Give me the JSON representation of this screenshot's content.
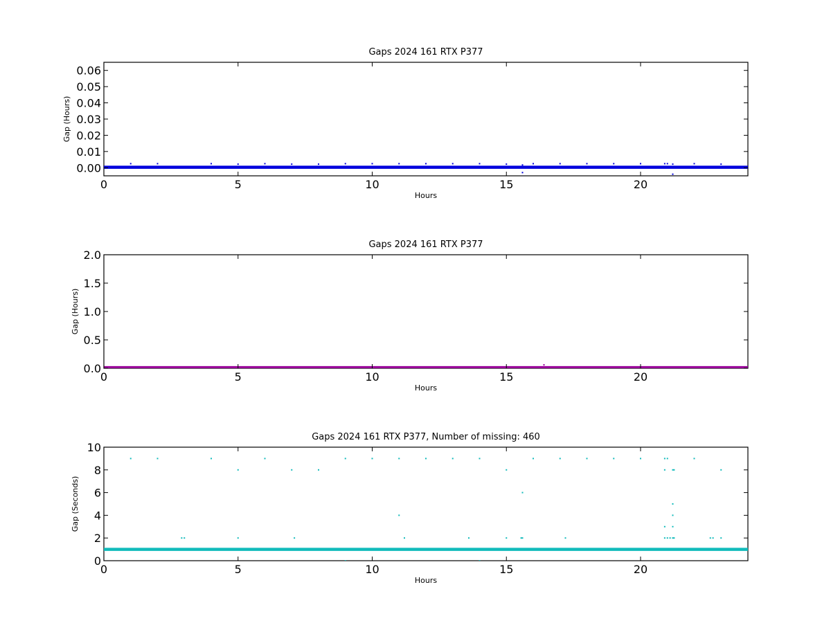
{
  "chart_data": [
    {
      "type": "scatter",
      "title": "Gaps 2024 161 RTX  P377",
      "xlabel": "Hours",
      "ylabel": "Gap (Hours)",
      "xlim": [
        0,
        24
      ],
      "ylim": [
        -0.005,
        0.065
      ],
      "xticks": [
        0,
        5,
        10,
        15,
        20
      ],
      "yticks": [
        0.0,
        0.01,
        0.02,
        0.03,
        0.04,
        0.05,
        0.06
      ],
      "ytick_labels": [
        "0.00",
        "0.01",
        "0.02",
        "0.03",
        "0.04",
        "0.05",
        "0.06"
      ],
      "xtick_labels": [
        "0",
        "5",
        "10",
        "15",
        "20"
      ],
      "grid": false,
      "color": "#0000dd",
      "baseline": {
        "x_start": 0,
        "x_end": 24,
        "y": 0.000278
      },
      "points": [
        {
          "x": 1.0,
          "y": 0.0025
        },
        {
          "x": 2.0,
          "y": 0.0025
        },
        {
          "x": 4.0,
          "y": 0.0025
        },
        {
          "x": 5.0,
          "y": 0.0022
        },
        {
          "x": 6.0,
          "y": 0.0025
        },
        {
          "x": 7.0,
          "y": 0.0022
        },
        {
          "x": 8.0,
          "y": 0.0022
        },
        {
          "x": 9.0,
          "y": 0.0025
        },
        {
          "x": 10.0,
          "y": 0.0025
        },
        {
          "x": 11.0,
          "y": 0.0025
        },
        {
          "x": 12.0,
          "y": 0.0025
        },
        {
          "x": 13.0,
          "y": 0.0025
        },
        {
          "x": 14.0,
          "y": 0.0025
        },
        {
          "x": 15.0,
          "y": 0.0022
        },
        {
          "x": 15.6,
          "y": 0.0017
        },
        {
          "x": 15.6,
          "y": -0.003
        },
        {
          "x": 16.0,
          "y": 0.0025
        },
        {
          "x": 17.0,
          "y": 0.0025
        },
        {
          "x": 18.0,
          "y": 0.0025
        },
        {
          "x": 19.0,
          "y": 0.0025
        },
        {
          "x": 20.0,
          "y": 0.0025
        },
        {
          "x": 20.9,
          "y": 0.0025
        },
        {
          "x": 21.0,
          "y": 0.0025
        },
        {
          "x": 21.2,
          "y": 0.0022
        },
        {
          "x": 21.2,
          "y": -0.004
        },
        {
          "x": 22.0,
          "y": 0.0025
        },
        {
          "x": 23.0,
          "y": 0.0022
        }
      ]
    },
    {
      "type": "scatter",
      "title": "Gaps 2024 161 RTX  P377",
      "xlabel": "Hours",
      "ylabel": "Gap (Hours)",
      "xlim": [
        0,
        24
      ],
      "ylim": [
        0,
        2.0
      ],
      "xticks": [
        0,
        5,
        10,
        15,
        20
      ],
      "yticks": [
        0.0,
        0.5,
        1.0,
        1.5,
        2.0
      ],
      "ytick_labels": [
        "0.0",
        "0.5",
        "1.0",
        "1.5",
        "2.0"
      ],
      "xtick_labels": [
        "0",
        "5",
        "10",
        "15",
        "20"
      ],
      "grid": false,
      "color": "#990099",
      "baseline": {
        "x_start": 0,
        "x_end": 24,
        "y": 0.01
      },
      "points": [
        {
          "x": 16.4,
          "y": 0.06
        }
      ]
    },
    {
      "type": "scatter",
      "title": "Gaps 2024 161 RTX  P377, Number of missing: 460",
      "xlabel": "Hours",
      "ylabel": "Gap (Seconds)",
      "xlim": [
        0,
        24
      ],
      "ylim": [
        0,
        10
      ],
      "xticks": [
        0,
        5,
        10,
        15,
        20
      ],
      "yticks": [
        0,
        2,
        4,
        6,
        8,
        10
      ],
      "ytick_labels": [
        "0",
        "2",
        "4",
        "6",
        "8",
        "10"
      ],
      "xtick_labels": [
        "0",
        "5",
        "10",
        "15",
        "20"
      ],
      "grid": false,
      "color": "#11bbbb",
      "baseline": {
        "x_start": 0,
        "x_end": 24,
        "y": 1
      },
      "points": [
        {
          "x": 1.0,
          "y": 9
        },
        {
          "x": 2.0,
          "y": 9
        },
        {
          "x": 4.0,
          "y": 9
        },
        {
          "x": 6.0,
          "y": 9
        },
        {
          "x": 9.0,
          "y": 9
        },
        {
          "x": 10.0,
          "y": 9
        },
        {
          "x": 11.0,
          "y": 9
        },
        {
          "x": 12.0,
          "y": 9
        },
        {
          "x": 13.0,
          "y": 9
        },
        {
          "x": 14.0,
          "y": 9
        },
        {
          "x": 16.0,
          "y": 9
        },
        {
          "x": 17.0,
          "y": 9
        },
        {
          "x": 18.0,
          "y": 9
        },
        {
          "x": 19.0,
          "y": 9
        },
        {
          "x": 20.0,
          "y": 9
        },
        {
          "x": 20.9,
          "y": 9
        },
        {
          "x": 21.0,
          "y": 9
        },
        {
          "x": 22.0,
          "y": 9
        },
        {
          "x": 5.0,
          "y": 8
        },
        {
          "x": 7.0,
          "y": 8
        },
        {
          "x": 8.0,
          "y": 8
        },
        {
          "x": 15.0,
          "y": 8
        },
        {
          "x": 20.9,
          "y": 8
        },
        {
          "x": 21.2,
          "y": 8
        },
        {
          "x": 21.25,
          "y": 8
        },
        {
          "x": 23.0,
          "y": 8
        },
        {
          "x": 15.6,
          "y": 6
        },
        {
          "x": 21.2,
          "y": 5
        },
        {
          "x": 11.0,
          "y": 4
        },
        {
          "x": 21.2,
          "y": 4
        },
        {
          "x": 20.9,
          "y": 3
        },
        {
          "x": 21.2,
          "y": 3
        },
        {
          "x": 2.9,
          "y": 2
        },
        {
          "x": 3.0,
          "y": 2
        },
        {
          "x": 5.0,
          "y": 2
        },
        {
          "x": 7.1,
          "y": 2
        },
        {
          "x": 11.2,
          "y": 2
        },
        {
          "x": 13.6,
          "y": 2
        },
        {
          "x": 15.0,
          "y": 2
        },
        {
          "x": 15.55,
          "y": 2
        },
        {
          "x": 15.6,
          "y": 2
        },
        {
          "x": 17.2,
          "y": 2
        },
        {
          "x": 20.9,
          "y": 2
        },
        {
          "x": 21.0,
          "y": 2
        },
        {
          "x": 21.1,
          "y": 2
        },
        {
          "x": 21.2,
          "y": 2
        },
        {
          "x": 21.25,
          "y": 2
        },
        {
          "x": 22.6,
          "y": 2
        },
        {
          "x": 22.7,
          "y": 2
        },
        {
          "x": 23.0,
          "y": 2
        },
        {
          "x": 9.0,
          "y": 0
        },
        {
          "x": 14.0,
          "y": 0
        }
      ]
    }
  ]
}
